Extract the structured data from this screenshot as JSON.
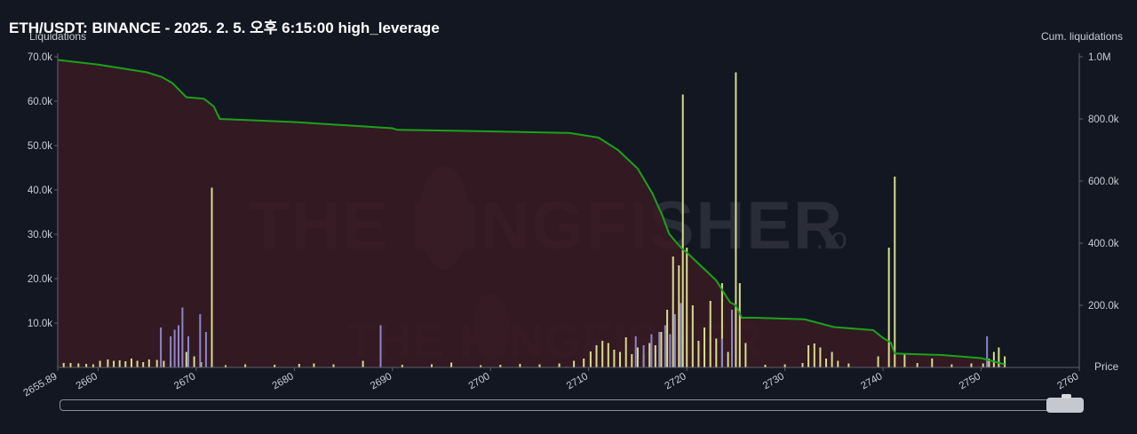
{
  "title": "ETH/USDT: BINANCE - 2025. 2. 5. 오후 6:15:00 high_leverage",
  "left_axis_label": "Liquidations",
  "right_axis_label": "Cum. liquidations",
  "x_axis_label": "Price",
  "watermark_text": "THE KINGFISHER",
  "watermark_suffix": ".io",
  "colors": {
    "background": "#131722",
    "area_fill": "#3a1a22",
    "cum_line": "#1aa31a",
    "bar_long": "#d8dc8c",
    "bar_short": "#8c86c8",
    "grid_text": "#c8ccd4"
  },
  "chart_data": {
    "type": "bar",
    "xlabel": "Price",
    "ylabel": "Liquidations",
    "y2label": "Cum. liquidations",
    "xlim": [
      2655.89,
      2760
    ],
    "ylim": [
      0,
      70000
    ],
    "y2lim": [
      0,
      1000000
    ],
    "x_ticks": [
      "2655.89",
      "2660",
      "2670",
      "2680",
      "2690",
      "2700",
      "2710",
      "2720",
      "2730",
      "2740",
      "2750",
      "2760"
    ],
    "y_ticks": [
      "70.0k",
      "60.0k",
      "50.0k",
      "40.0k",
      "30.0k",
      "20.0k",
      "10.0k"
    ],
    "y2_ticks": [
      "1.0M",
      "800.0k",
      "600.0k",
      "400.0k",
      "200.0k"
    ],
    "y_tick_values": [
      70000,
      60000,
      50000,
      40000,
      30000,
      20000,
      10000
    ],
    "y2_tick_values": [
      1000000,
      800000,
      600000,
      400000,
      200000
    ],
    "x_tick_values": [
      2655.89,
      2660,
      2670,
      2680,
      2690,
      2700,
      2710,
      2720,
      2730,
      2740,
      2750,
      2760
    ],
    "series": [
      {
        "name": "",
        "kind": "long",
        "x": [
          2656.5,
          2657.2,
          2658,
          2658.8,
          2659.5,
          2660.2,
          2661,
          2661.6,
          2662.2,
          2662.8,
          2663.4,
          2664,
          2664.6,
          2665.2,
          2666,
          2666.7,
          2667.4,
          2668.2,
          2669,
          2669.8,
          2670.5,
          2671.6,
          2673,
          2675,
          2678,
          2680.5,
          2682,
          2684,
          2687,
          2688.8,
          2691,
          2694,
          2696,
          2699,
          2701,
          2703,
          2705,
          2707,
          2708.5,
          2709.5,
          2710.2,
          2710.8,
          2711.4,
          2712,
          2712.6,
          2713.2,
          2713.8,
          2714.4,
          2715,
          2715.6,
          2716.2,
          2716.8,
          2717.4,
          2718,
          2718.6,
          2719.2,
          2719.6,
          2720,
          2720.6,
          2721.2,
          2721.8,
          2722.4,
          2723,
          2723.6,
          2724.2,
          2724.6,
          2725,
          2725.4,
          2726,
          2728,
          2730,
          2731.8,
          2732.4,
          2733,
          2733.6,
          2734.2,
          2734.8,
          2735.4,
          2736.5,
          2739.5,
          2740.6,
          2741.2,
          2742.2,
          2743.5,
          2745,
          2747,
          2749,
          2750.2,
          2750.8,
          2751.3,
          2751.8,
          2752.4
        ],
        "values": [
          1000,
          1000,
          900,
          800,
          700,
          1500,
          1800,
          1500,
          1600,
          1400,
          2000,
          1500,
          1200,
          1800,
          1700,
          1500,
          1600,
          1800,
          3500,
          2500,
          1200,
          40500,
          500,
          700,
          600,
          800,
          900,
          700,
          1500,
          1800,
          600,
          700,
          1100,
          500,
          600,
          800,
          700,
          900,
          1500,
          2000,
          3600,
          5000,
          6000,
          5500,
          4000,
          3500,
          6800,
          3000,
          4500,
          3000,
          5500,
          5000,
          8000,
          13000,
          25000,
          23000,
          61500,
          27000,
          14000,
          6000,
          9000,
          15000,
          6500,
          19000,
          3500,
          10000,
          66500,
          19000,
          5500,
          600,
          700,
          1000,
          5000,
          5400,
          4500,
          2000,
          3500,
          1500,
          900,
          2500,
          27000,
          43000,
          3000,
          1000,
          2000,
          700,
          900,
          900,
          2000,
          3500,
          4500,
          2500
        ],
        "values_note": ""
      },
      {
        "name": "",
        "kind": "short",
        "x": [
          2666.4,
          2667.4,
          2667.8,
          2668.2,
          2668.6,
          2669.2,
          2670.4,
          2671,
          2688.8,
          2714.8,
          2715.6,
          2716.4,
          2717.2,
          2717.8,
          2718.3,
          2718.8,
          2719.4,
          2723.6,
          2724.6,
          2750.6
        ],
        "values": [
          9000,
          7000,
          8500,
          9500,
          13500,
          7000,
          12000,
          8000,
          9500,
          7000,
          5000,
          7500,
          8000,
          9500,
          7500,
          12000,
          14500,
          6500,
          13000,
          7000
        ],
        "values_note": ""
      },
      {
        "name": "",
        "kind": "cumulative",
        "axis": "y2",
        "x": [
          2655.89,
          2660,
          2663,
          2665,
          2666.5,
          2667.6,
          2669,
          2670.8,
          2671.8,
          2672.4,
          2680,
          2690,
          2690.5,
          2700,
          2708,
          2711,
          2713,
          2715,
          2716.5,
          2717.5,
          2718.2,
          2719,
          2719.6,
          2720,
          2721,
          2722,
          2723,
          2724,
          2724.4,
          2725,
          2725.6,
          2726,
          2727,
          2732,
          2735,
          2739,
          2740,
          2740.8,
          2741.2,
          2746,
          2750,
          2752.4
        ],
        "values": [
          990000,
          975000,
          960000,
          950000,
          935000,
          915000,
          870000,
          865000,
          840000,
          800000,
          790000,
          770000,
          765000,
          760000,
          755000,
          740000,
          700000,
          640000,
          560000,
          490000,
          430000,
          400000,
          380000,
          370000,
          340000,
          310000,
          280000,
          230000,
          210000,
          200000,
          160000,
          160000,
          160000,
          155000,
          130000,
          120000,
          95000,
          80000,
          45000,
          40000,
          30000,
          10000
        ]
      }
    ]
  }
}
